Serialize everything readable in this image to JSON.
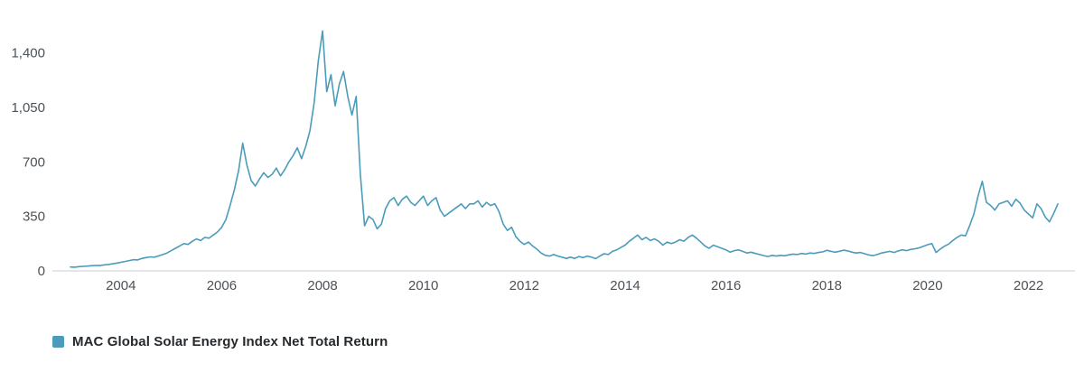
{
  "chart_data": {
    "type": "line",
    "title": "",
    "xlabel": "",
    "ylabel": "",
    "grid": false,
    "legend_position": "bottom-left",
    "axis_line_color": "#c9ced3",
    "tick_label_color": "#4c5257",
    "x_range": [
      2002.75,
      2022.85
    ],
    "y_range": [
      0,
      1600
    ],
    "x_ticks": [
      2004,
      2006,
      2008,
      2010,
      2012,
      2014,
      2016,
      2018,
      2020,
      2022
    ],
    "x_tick_labels": [
      "2004",
      "2006",
      "2008",
      "2010",
      "2012",
      "2014",
      "2016",
      "2018",
      "2020",
      "2022"
    ],
    "y_ticks": [
      0,
      350,
      700,
      1050,
      1400
    ],
    "y_tick_labels": [
      "0",
      "350",
      "700",
      "1,050",
      "1,400"
    ],
    "series": [
      {
        "name": "MAC Global Solar Energy Index Net Total Return",
        "color": "#4a9cba",
        "x_start": 2003.0,
        "x_step_years": 0.083333,
        "values": [
          25,
          24,
          27,
          29,
          31,
          33,
          35,
          34,
          38,
          41,
          45,
          50,
          55,
          60,
          66,
          72,
          70,
          80,
          85,
          90,
          88,
          96,
          105,
          115,
          130,
          145,
          160,
          175,
          170,
          190,
          205,
          195,
          215,
          210,
          230,
          250,
          280,
          330,
          420,
          520,
          640,
          820,
          680,
          580,
          545,
          590,
          630,
          600,
          620,
          660,
          610,
          650,
          700,
          740,
          790,
          720,
          800,
          900,
          1080,
          1350,
          1540,
          1150,
          1260,
          1060,
          1200,
          1280,
          1120,
          1000,
          1120,
          620,
          290,
          350,
          330,
          270,
          300,
          400,
          450,
          470,
          420,
          460,
          480,
          440,
          420,
          450,
          480,
          420,
          450,
          470,
          390,
          350,
          370,
          390,
          410,
          430,
          400,
          430,
          430,
          450,
          410,
          440,
          420,
          430,
          380,
          300,
          260,
          280,
          220,
          190,
          170,
          185,
          160,
          140,
          115,
          100,
          95,
          105,
          95,
          88,
          80,
          88,
          80,
          92,
          85,
          95,
          88,
          78,
          95,
          110,
          105,
          125,
          135,
          150,
          165,
          190,
          210,
          230,
          200,
          215,
          195,
          205,
          190,
          165,
          185,
          175,
          185,
          200,
          190,
          215,
          230,
          210,
          185,
          160,
          145,
          165,
          155,
          145,
          135,
          120,
          130,
          135,
          125,
          115,
          120,
          112,
          105,
          98,
          92,
          100,
          95,
          100,
          97,
          103,
          108,
          105,
          112,
          108,
          115,
          112,
          118,
          122,
          132,
          125,
          120,
          126,
          133,
          128,
          120,
          115,
          118,
          110,
          102,
          98,
          105,
          115,
          120,
          125,
          118,
          128,
          135,
          130,
          138,
          142,
          148,
          158,
          168,
          175,
          118,
          140,
          158,
          172,
          195,
          215,
          230,
          225,
          290,
          365,
          480,
          575,
          440,
          420,
          390,
          430,
          440,
          450,
          415,
          460,
          435,
          390,
          365,
          340,
          430,
          400,
          345,
          315,
          370,
          430
        ]
      }
    ]
  }
}
